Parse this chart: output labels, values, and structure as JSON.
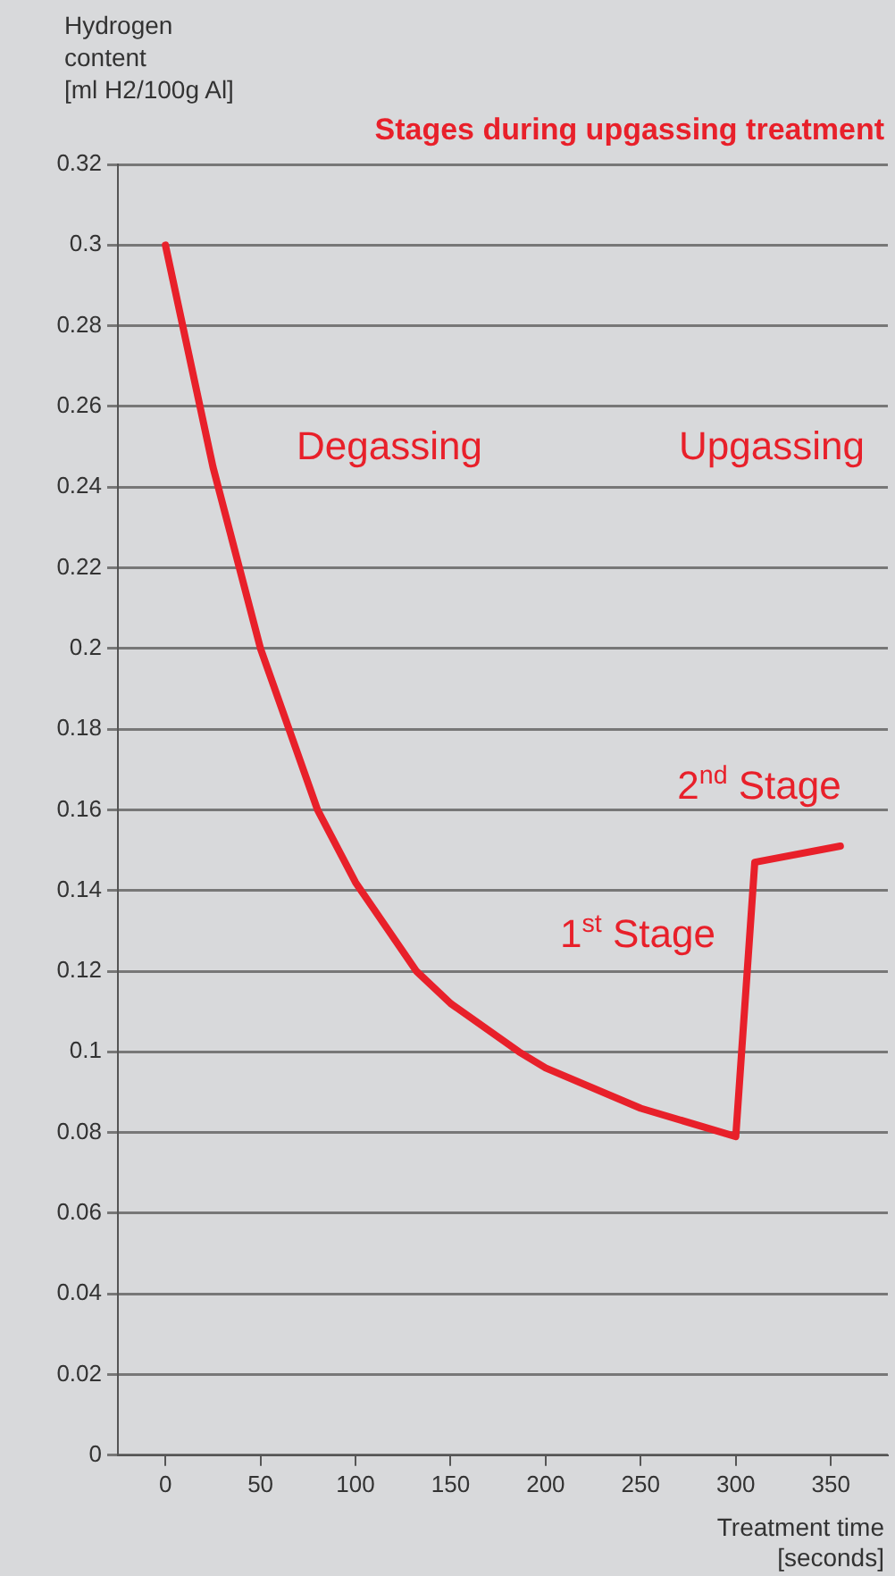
{
  "chart_data": {
    "type": "line",
    "title": "Stages during upgassing treatment",
    "ylabel": "Hydrogen\ncontent\n[ml H2/100g Al]",
    "xlabel": "Treatment time\n[seconds]",
    "x": [
      0,
      25,
      50,
      80,
      100,
      132,
      150,
      186,
      200,
      250,
      300,
      310,
      355
    ],
    "series": [
      {
        "color": "#e8202a",
        "values": [
          0.3,
          0.245,
          0.2,
          0.16,
          0.142,
          0.12,
          0.112,
          0.1,
          0.096,
          0.086,
          0.079,
          0.147,
          0.151
        ]
      }
    ],
    "xlim": [
      -25,
      380
    ],
    "xticks": [
      0,
      50,
      100,
      150,
      200,
      250,
      300,
      350
    ],
    "ylim": [
      0,
      0.32
    ],
    "yticks": [
      0,
      0.02,
      0.04,
      0.06,
      0.08,
      0.1,
      0.12,
      0.14,
      0.16,
      0.18,
      0.2,
      0.22,
      0.24,
      0.26,
      0.28,
      0.3,
      0.32
    ],
    "grid": "y",
    "legend": false,
    "marker": "none",
    "line_style": "solid",
    "annotations": [
      "Degassing",
      "Upgassing",
      "1$^{st}$ Stage",
      "2$^{nd}$ Stage"
    ]
  }
}
